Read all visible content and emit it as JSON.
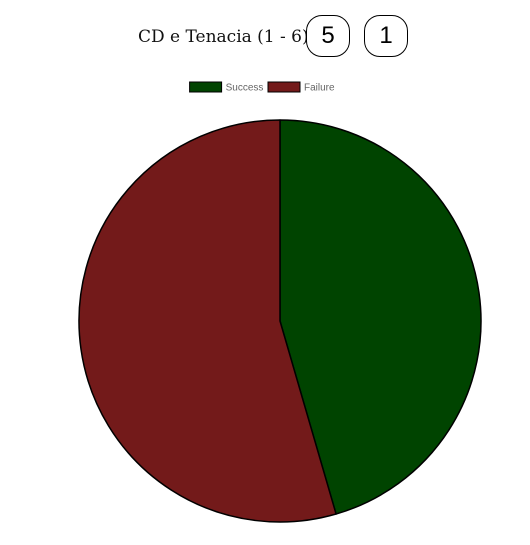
{
  "header": {
    "label": "CD e Tenacia (1 - 6):",
    "values": [
      "5",
      "1"
    ]
  },
  "colors": {
    "success": "#004400",
    "failure": "#731a1a",
    "border": "#000000"
  },
  "chart_data": {
    "type": "pie",
    "categories": [
      "Success",
      "Failure"
    ],
    "values": [
      45.5,
      54.5
    ],
    "title": "",
    "legend": "top",
    "colors": [
      "#004400",
      "#731a1a"
    ]
  }
}
